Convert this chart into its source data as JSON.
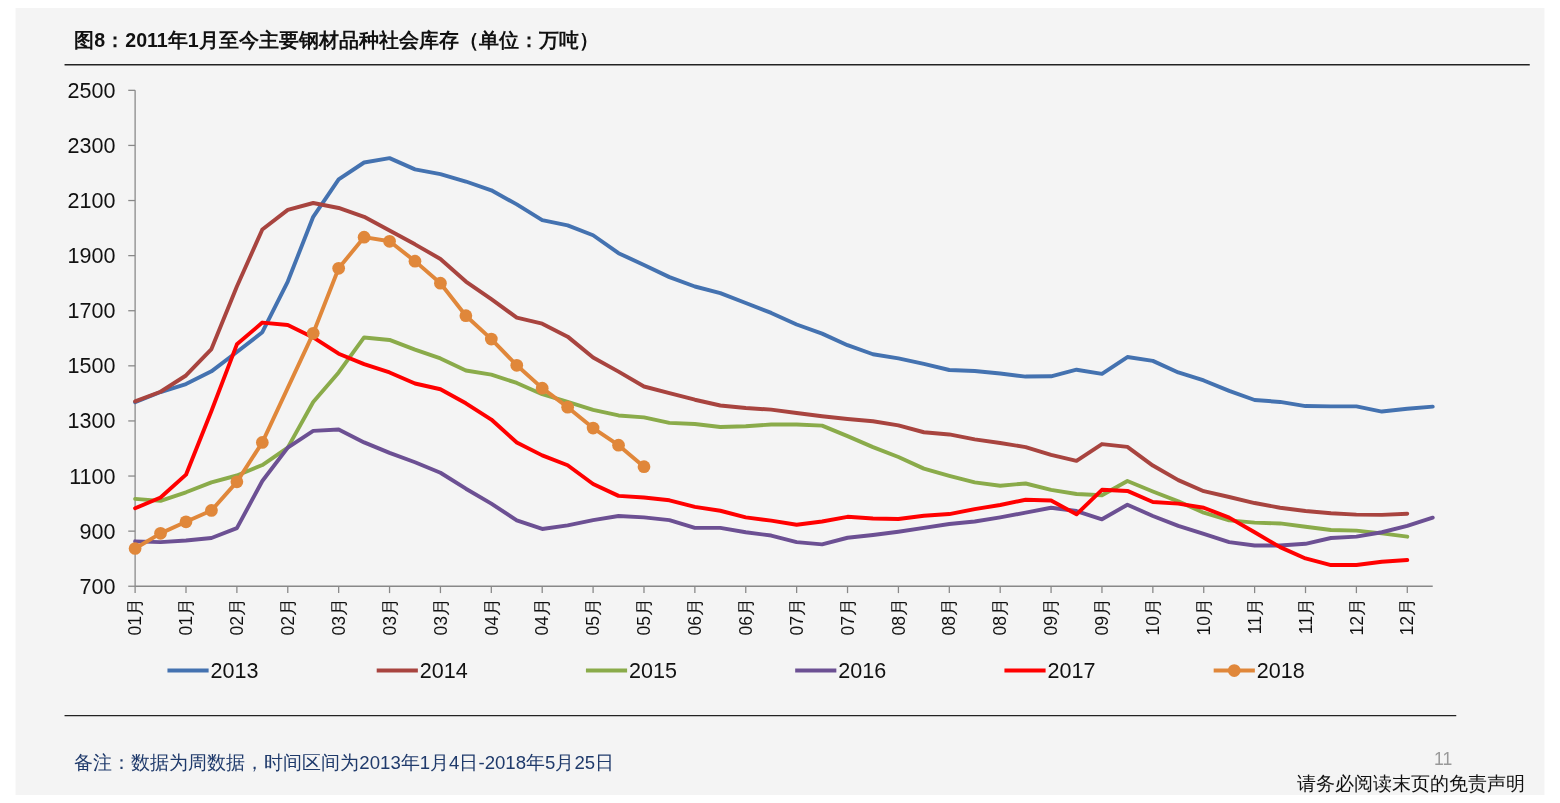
{
  "chart_data": {
    "type": "line",
    "title": "图8：2011年1月至今主要钢材品种社会库存（单位：万吨）",
    "categories": [
      "01月",
      null,
      "01月",
      null,
      "02月",
      null,
      "02月",
      null,
      "03月",
      null,
      "03月",
      null,
      "03月",
      null,
      "04月",
      null,
      "04月",
      null,
      "05月",
      null,
      "05月",
      null,
      "06月",
      null,
      "06月",
      null,
      "07月",
      null,
      "07月",
      null,
      "08月",
      null,
      "08月",
      null,
      "08月",
      null,
      "09月",
      null,
      "09月",
      null,
      "10月",
      null,
      "10月",
      null,
      "11月",
      null,
      "11月",
      null,
      "12月",
      null,
      "12月",
      null
    ],
    "series": [
      {
        "name": "2013",
        "color": "#4472b0",
        "values": [
          1368,
          1405,
          1434,
          1480,
          1550,
          1622,
          1806,
          2041,
          2177,
          2238,
          2254,
          2213,
          2196,
          2169,
          2137,
          2086,
          2029,
          2010,
          1974,
          1909,
          1866,
          1822,
          1788,
          1764,
          1728,
          1692,
          1650,
          1617,
          1575,
          1542,
          1527,
          1507,
          1485,
          1481,
          1472,
          1461,
          1462,
          1486,
          1471,
          1532,
          1518,
          1476,
          1447,
          1409,
          1376,
          1369,
          1354,
          1353,
          1353,
          1334,
          1344,
          1352
        ]
      },
      {
        "name": "2014",
        "color": "#a8443f",
        "values": [
          1371,
          1406,
          1465,
          1561,
          1788,
          1995,
          2066,
          2091,
          2073,
          2041,
          1991,
          1941,
          1888,
          1806,
          1742,
          1675,
          1653,
          1606,
          1530,
          1479,
          1425,
          1401,
          1377,
          1356,
          1347,
          1341,
          1329,
          1317,
          1307,
          1299,
          1284,
          1259,
          1251,
          1233,
          1220,
          1205,
          1177,
          1155,
          1216,
          1206,
          1138,
          1085,
          1045,
          1024,
          1002,
          985,
          973,
          965,
          960,
          959,
          963,
          null
        ]
      },
      {
        "name": "2015",
        "color": "#8aab4a",
        "values": [
          1017,
          1010,
          1041,
          1077,
          1102,
          1140,
          1203,
          1369,
          1476,
          1603,
          1594,
          1559,
          1527,
          1483,
          1468,
          1438,
          1397,
          1369,
          1340,
          1320,
          1313,
          1293,
          1289,
          1278,
          1281,
          1287,
          1287,
          1283,
          1245,
          1205,
          1169,
          1127,
          1101,
          1077,
          1065,
          1073,
          1050,
          1035,
          1030,
          1082,
          1044,
          1008,
          967,
          939,
          931,
          928,
          916,
          904,
          902,
          892,
          880,
          null
        ]
      },
      {
        "name": "2016",
        "color": "#6c5093",
        "values": [
          863,
          860,
          866,
          875,
          911,
          1082,
          1203,
          1264,
          1269,
          1222,
          1184,
          1150,
          1112,
          1054,
          1000,
          939,
          908,
          921,
          940,
          955,
          950,
          940,
          912,
          912,
          896,
          884,
          860,
          852,
          876,
          886,
          898,
          912,
          926,
          935,
          950,
          967,
          985,
          973,
          943,
          996,
          955,
          919,
          890,
          860,
          848,
          848,
          854,
          875,
          880,
          896,
          919,
          949
        ]
      },
      {
        "name": "2017",
        "color": "#ff0000",
        "values": [
          983,
          1022,
          1105,
          1336,
          1578,
          1657,
          1648,
          1603,
          1544,
          1506,
          1476,
          1436,
          1415,
          1364,
          1305,
          1222,
          1175,
          1139,
          1071,
          1028,
          1022,
          1012,
          988,
          974,
          950,
          938,
          923,
          935,
          952,
          946,
          944,
          956,
          962,
          980,
          995,
          1014,
          1011,
          961,
          1050,
          1046,
          1006,
          1000,
          985,
          949,
          896,
          842,
          801,
          777,
          777,
          789,
          795,
          null
        ]
      },
      {
        "name": "2018",
        "color": "#e0873a",
        "marker": "circle",
        "values": [
          837,
          892,
          934,
          975,
          1079,
          1222,
          null,
          1618,
          1854,
          1967,
          1952,
          1880,
          1800,
          1682,
          1597,
          1502,
          1419,
          1350,
          1274,
          1212,
          1134,
          null,
          null,
          null,
          null,
          null,
          null,
          null,
          null,
          null,
          null,
          null,
          null,
          null,
          null,
          null,
          null,
          null,
          null,
          null,
          null,
          null,
          null,
          null,
          null,
          null,
          null,
          null,
          null,
          null,
          null,
          null
        ]
      }
    ],
    "ylim": [
      700,
      2500
    ],
    "yticks": [
      700,
      900,
      1100,
      1300,
      1500,
      1700,
      1900,
      2100,
      2300,
      2500
    ],
    "legend": "bottom",
    "annotations": [
      "备注：数据为周数据，时间区间为2013年1月4日-2018年5月25日",
      "11",
      "请务必阅读末页的免责声明"
    ]
  }
}
